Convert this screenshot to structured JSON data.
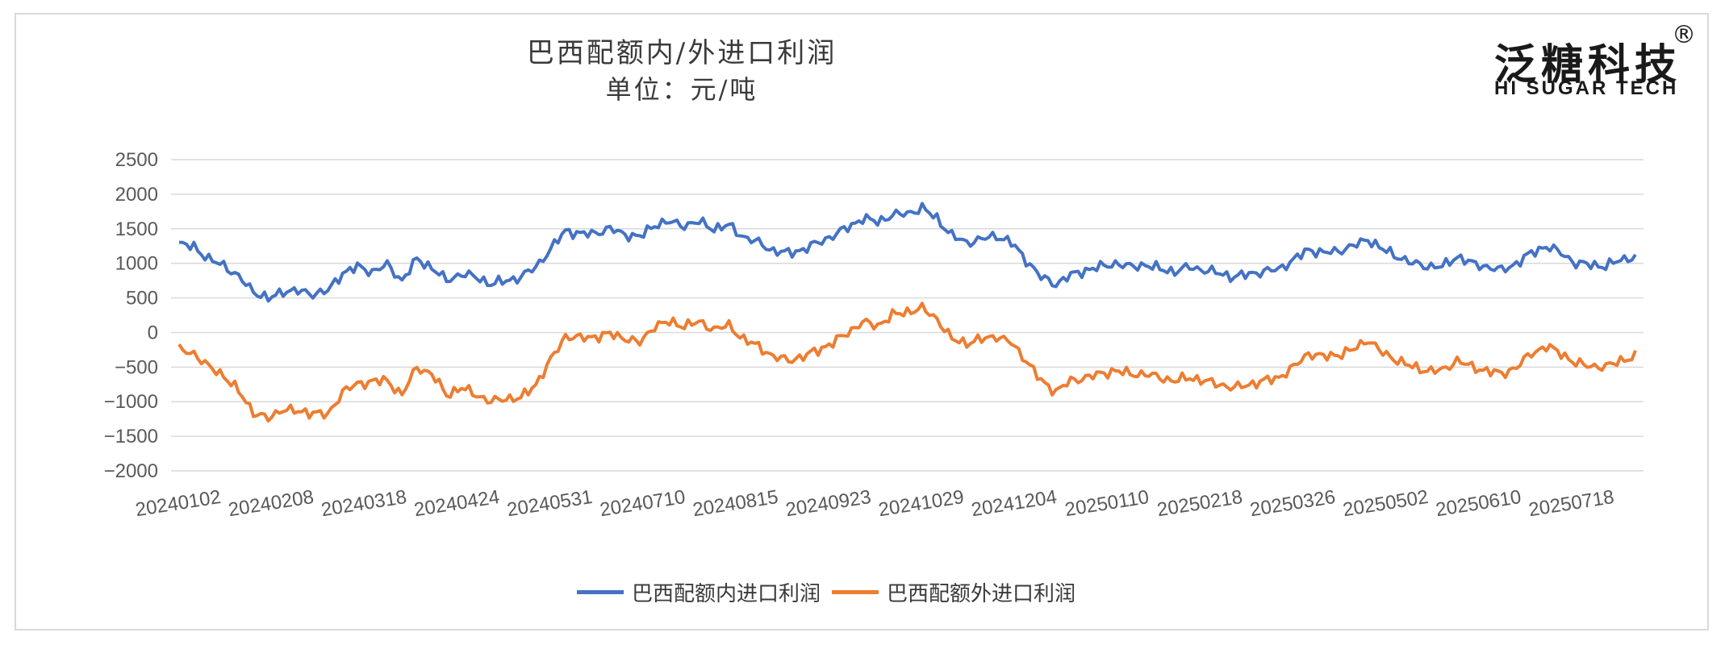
{
  "logo": {
    "cn": "泛糖科技",
    "en": "HI SUGAR TECH",
    "mark": "®"
  },
  "colors": {
    "series1": "#4472c4",
    "series2": "#ed7d31",
    "grid": "#d9d9d9",
    "text": "#595959"
  },
  "chart_data": {
    "type": "line",
    "title": "巴西配额内/外进口利润",
    "subtitle": "单位：元/吨",
    "xlabel": "",
    "ylabel": "",
    "ylim": [
      -2000,
      2500
    ],
    "yticks": [
      2500,
      2000,
      1500,
      1000,
      500,
      0,
      -500,
      -1000,
      -1500,
      -2000
    ],
    "yticklabels": [
      "2500",
      "2000",
      "1500",
      "1000",
      "500",
      "0",
      "−500",
      "−1000",
      "−1500",
      "−2000"
    ],
    "x_tick_labels": [
      "20240102",
      "20240208",
      "20240318",
      "20240424",
      "20240531",
      "20240710",
      "20240815",
      "20240923",
      "20241029",
      "20241204",
      "20250110",
      "20250218",
      "20250326",
      "20250502",
      "20250610",
      "20250718"
    ],
    "x_tick_index": [
      0,
      25,
      50,
      75,
      100,
      125,
      150,
      175,
      200,
      225,
      250,
      275,
      300,
      325,
      350,
      375
    ],
    "n_points": 393,
    "legend_position": "bottom",
    "series": [
      {
        "name": "巴西配额内进口利润",
        "anchors": [
          [
            0,
            1270
          ],
          [
            4,
            1250
          ],
          [
            8,
            1050
          ],
          [
            12,
            980
          ],
          [
            16,
            800
          ],
          [
            20,
            600
          ],
          [
            24,
            480
          ],
          [
            28,
            600
          ],
          [
            32,
            600
          ],
          [
            36,
            560
          ],
          [
            40,
            600
          ],
          [
            44,
            860
          ],
          [
            48,
            950
          ],
          [
            52,
            880
          ],
          [
            56,
            980
          ],
          [
            60,
            750
          ],
          [
            64,
            1060
          ],
          [
            68,
            940
          ],
          [
            72,
            750
          ],
          [
            76,
            850
          ],
          [
            80,
            800
          ],
          [
            84,
            700
          ],
          [
            88,
            750
          ],
          [
            92,
            800
          ],
          [
            96,
            950
          ],
          [
            100,
            1200
          ],
          [
            104,
            1480
          ],
          [
            108,
            1420
          ],
          [
            112,
            1440
          ],
          [
            116,
            1500
          ],
          [
            120,
            1420
          ],
          [
            124,
            1380
          ],
          [
            128,
            1560
          ],
          [
            132,
            1600
          ],
          [
            136,
            1550
          ],
          [
            140,
            1600
          ],
          [
            144,
            1500
          ],
          [
            148,
            1550
          ],
          [
            152,
            1380
          ],
          [
            156,
            1300
          ],
          [
            160,
            1180
          ],
          [
            164,
            1150
          ],
          [
            168,
            1200
          ],
          [
            172,
            1300
          ],
          [
            176,
            1400
          ],
          [
            180,
            1520
          ],
          [
            184,
            1650
          ],
          [
            188,
            1600
          ],
          [
            192,
            1700
          ],
          [
            196,
            1720
          ],
          [
            200,
            1800
          ],
          [
            204,
            1650
          ],
          [
            208,
            1400
          ],
          [
            212,
            1300
          ],
          [
            216,
            1350
          ],
          [
            220,
            1400
          ],
          [
            224,
            1300
          ],
          [
            228,
            1050
          ],
          [
            232,
            800
          ],
          [
            236,
            700
          ],
          [
            240,
            830
          ],
          [
            244,
            900
          ],
          [
            248,
            950
          ],
          [
            252,
            1000
          ],
          [
            256,
            950
          ],
          [
            260,
            980
          ],
          [
            264,
            920
          ],
          [
            268,
            880
          ],
          [
            272,
            950
          ],
          [
            276,
            900
          ],
          [
            280,
            860
          ],
          [
            284,
            800
          ],
          [
            288,
            850
          ],
          [
            292,
            880
          ],
          [
            296,
            920
          ],
          [
            300,
            1050
          ],
          [
            304,
            1200
          ],
          [
            308,
            1150
          ],
          [
            312,
            1180
          ],
          [
            316,
            1250
          ],
          [
            320,
            1350
          ],
          [
            324,
            1200
          ],
          [
            328,
            1100
          ],
          [
            332,
            1000
          ],
          [
            336,
            960
          ],
          [
            340,
            950
          ],
          [
            344,
            1100
          ],
          [
            348,
            1000
          ],
          [
            352,
            950
          ],
          [
            356,
            900
          ],
          [
            360,
            1000
          ],
          [
            364,
            1150
          ],
          [
            368,
            1250
          ],
          [
            372,
            1150
          ],
          [
            376,
            1000
          ],
          [
            380,
            980
          ],
          [
            384,
            960
          ],
          [
            388,
            1050
          ],
          [
            392,
            1100
          ]
        ]
      },
      {
        "name": "巴西配额外进口利润",
        "anchors": [
          [
            0,
            -250
          ],
          [
            4,
            -300
          ],
          [
            8,
            -500
          ],
          [
            12,
            -620
          ],
          [
            16,
            -850
          ],
          [
            20,
            -1150
          ],
          [
            24,
            -1250
          ],
          [
            28,
            -1100
          ],
          [
            32,
            -1150
          ],
          [
            36,
            -1150
          ],
          [
            40,
            -1200
          ],
          [
            44,
            -850
          ],
          [
            48,
            -750
          ],
          [
            52,
            -700
          ],
          [
            56,
            -700
          ],
          [
            60,
            -900
          ],
          [
            64,
            -500
          ],
          [
            68,
            -600
          ],
          [
            72,
            -900
          ],
          [
            76,
            -800
          ],
          [
            80,
            -900
          ],
          [
            84,
            -1000
          ],
          [
            88,
            -950
          ],
          [
            92,
            -950
          ],
          [
            96,
            -750
          ],
          [
            100,
            -400
          ],
          [
            104,
            -50
          ],
          [
            108,
            -80
          ],
          [
            112,
            -60
          ],
          [
            116,
            -20
          ],
          [
            120,
            -80
          ],
          [
            124,
            -150
          ],
          [
            128,
            100
          ],
          [
            132,
            150
          ],
          [
            136,
            100
          ],
          [
            140,
            150
          ],
          [
            144,
            50
          ],
          [
            148,
            100
          ],
          [
            152,
            -100
          ],
          [
            156,
            -200
          ],
          [
            160,
            -350
          ],
          [
            164,
            -400
          ],
          [
            168,
            -350
          ],
          [
            172,
            -250
          ],
          [
            176,
            -150
          ],
          [
            180,
            0
          ],
          [
            184,
            150
          ],
          [
            188,
            100
          ],
          [
            192,
            250
          ],
          [
            196,
            300
          ],
          [
            200,
            350
          ],
          [
            204,
            200
          ],
          [
            208,
            -100
          ],
          [
            212,
            -150
          ],
          [
            216,
            -100
          ],
          [
            220,
            -50
          ],
          [
            224,
            -150
          ],
          [
            228,
            -400
          ],
          [
            232,
            -700
          ],
          [
            236,
            -850
          ],
          [
            240,
            -700
          ],
          [
            244,
            -650
          ],
          [
            248,
            -600
          ],
          [
            252,
            -550
          ],
          [
            256,
            -600
          ],
          [
            260,
            -600
          ],
          [
            264,
            -650
          ],
          [
            268,
            -700
          ],
          [
            272,
            -650
          ],
          [
            276,
            -700
          ],
          [
            280,
            -750
          ],
          [
            284,
            -800
          ],
          [
            288,
            -750
          ],
          [
            292,
            -700
          ],
          [
            296,
            -650
          ],
          [
            300,
            -500
          ],
          [
            304,
            -300
          ],
          [
            308,
            -350
          ],
          [
            312,
            -320
          ],
          [
            316,
            -250
          ],
          [
            320,
            -100
          ],
          [
            324,
            -300
          ],
          [
            328,
            -400
          ],
          [
            332,
            -500
          ],
          [
            336,
            -550
          ],
          [
            340,
            -550
          ],
          [
            344,
            -400
          ],
          [
            348,
            -500
          ],
          [
            352,
            -550
          ],
          [
            356,
            -600
          ],
          [
            360,
            -500
          ],
          [
            364,
            -300
          ],
          [
            368,
            -200
          ],
          [
            372,
            -300
          ],
          [
            376,
            -450
          ],
          [
            380,
            -480
          ],
          [
            384,
            -500
          ],
          [
            388,
            -400
          ],
          [
            392,
            -350
          ]
        ]
      }
    ]
  }
}
